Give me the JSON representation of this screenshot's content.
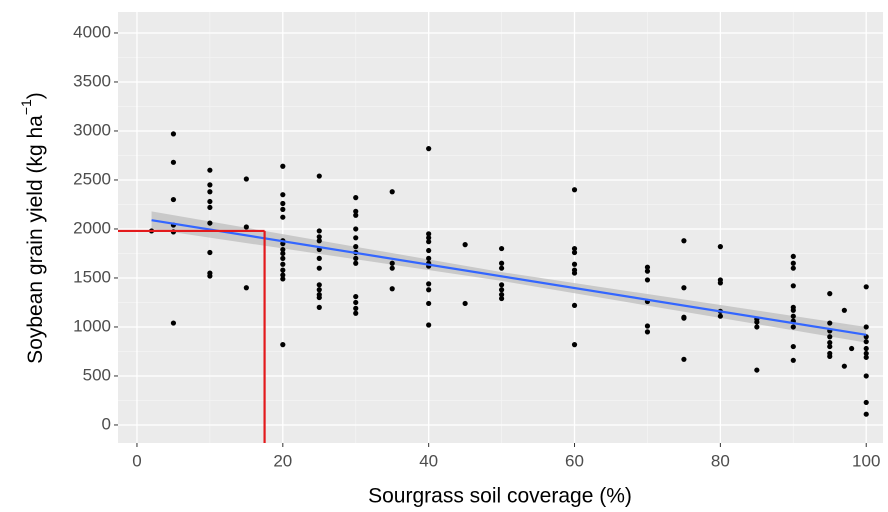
{
  "chart_data": {
    "type": "scatter",
    "xlabel": "Sourgrass soil coverage (%)",
    "ylabel": "Soybean  grain yield (kg ha",
    "ylabel_sup": "−1",
    "ylabel_end": ")",
    "xlim": [
      -2.6,
      102.3
    ],
    "ylim": [
      -184,
      4214
    ],
    "xticks": [
      0,
      20,
      40,
      60,
      80,
      100
    ],
    "yticks": [
      0,
      500,
      1000,
      1500,
      2000,
      2500,
      3000,
      3500,
      4000
    ],
    "grid": true,
    "series": [
      {
        "color": "#000000",
        "x": [
          2,
          5,
          5,
          5,
          5,
          5,
          5,
          10,
          10,
          10,
          10,
          10,
          10,
          10,
          10,
          10,
          15,
          15,
          15,
          20,
          20,
          20,
          20,
          20,
          20,
          20,
          20,
          20,
          20,
          20,
          20,
          20,
          20,
          20,
          25,
          25,
          25,
          25,
          25,
          25,
          25,
          25,
          25,
          25,
          25,
          25,
          30,
          30,
          30,
          30,
          30,
          30,
          30,
          30,
          30,
          30,
          30,
          30,
          30,
          35,
          35,
          35,
          35,
          40,
          40,
          40,
          40,
          40,
          40,
          40,
          40,
          40,
          40,
          40,
          40,
          45,
          45,
          50,
          50,
          50,
          50,
          50,
          50,
          50,
          60,
          60,
          60,
          60,
          60,
          60,
          60,
          60,
          70,
          70,
          70,
          70,
          70,
          70,
          75,
          75,
          75,
          75,
          75,
          80,
          80,
          80,
          80,
          80,
          85,
          85,
          85,
          85,
          90,
          90,
          90,
          90,
          90,
          90,
          90,
          90,
          90,
          90,
          90,
          95,
          95,
          95,
          95,
          95,
          95,
          95,
          95,
          97,
          97,
          98,
          100,
          100,
          100,
          100,
          100,
          100,
          100,
          100,
          100,
          100
        ],
        "values": [
          1980,
          2970,
          2680,
          2300,
          2040,
          1970,
          1040,
          2600,
          2450,
          2380,
          2280,
          2220,
          2060,
          1760,
          1550,
          1520,
          2510,
          2020,
          1400,
          2640,
          2350,
          2260,
          2200,
          2120,
          1880,
          1850,
          1790,
          1750,
          1700,
          1640,
          1580,
          1530,
          1490,
          820,
          2540,
          1980,
          1920,
          1880,
          1790,
          1700,
          1600,
          1430,
          1380,
          1330,
          1300,
          1200,
          2320,
          2180,
          2140,
          2000,
          1910,
          1820,
          1760,
          1700,
          1650,
          1310,
          1250,
          1190,
          1140,
          2380,
          1650,
          1600,
          1390,
          2820,
          1950,
          1910,
          1870,
          1780,
          1700,
          1650,
          1620,
          1440,
          1380,
          1240,
          1020,
          1840,
          1240,
          1800,
          1650,
          1600,
          1430,
          1380,
          1330,
          1290,
          2400,
          1800,
          1760,
          1640,
          1580,
          1550,
          1220,
          820,
          1610,
          1570,
          1480,
          1260,
          1010,
          950,
          1880,
          1400,
          1100,
          1090,
          670,
          1820,
          1480,
          1450,
          1160,
          1110,
          1080,
          1050,
          1000,
          560,
          1720,
          1650,
          1600,
          1420,
          1200,
          1170,
          1110,
          1060,
          1000,
          800,
          660,
          1340,
          1040,
          960,
          900,
          840,
          800,
          730,
          700,
          1170,
          600,
          780,
          1410,
          1000,
          900,
          850,
          780,
          730,
          690,
          500,
          230,
          110
        ]
      }
    ],
    "fit": {
      "color": "#3366ff",
      "x": [
        2,
        100
      ],
      "values": [
        2090,
        920
      ]
    },
    "ribbon": {
      "color": "#bdbdbd",
      "x": [
        2,
        50,
        100
      ],
      "lower": [
        2000,
        1470,
        840
      ],
      "upper": [
        2180,
        1560,
        1000
      ]
    },
    "reference": {
      "color": "#e31a1c",
      "x": 17.5,
      "y": 1980
    }
  }
}
